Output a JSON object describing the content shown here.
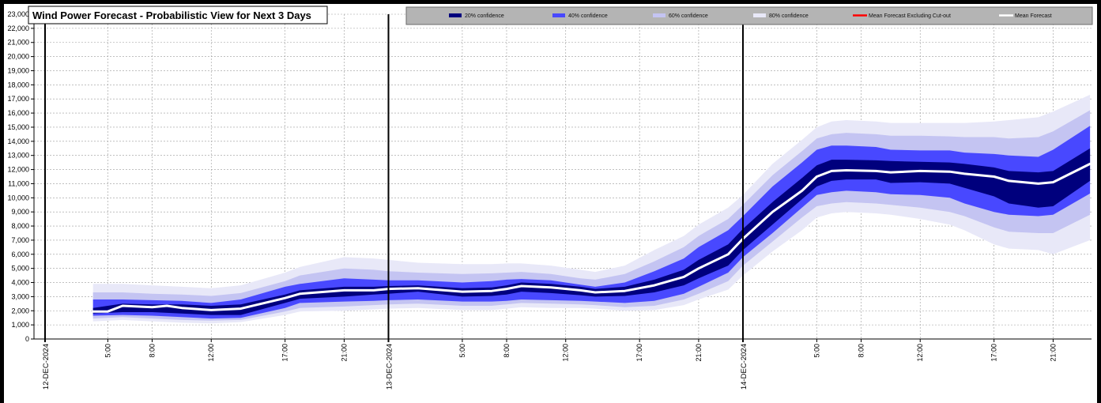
{
  "chart_data": {
    "type": "area",
    "title": "Wind Power Forecast - Probabilistic View for Next 3 Days",
    "ylim": [
      0,
      23000
    ],
    "y_ticks": [
      "0",
      "1,000",
      "2,000",
      "3,000",
      "4,000",
      "5,000",
      "6,000",
      "7,000",
      "8,000",
      "9,000",
      "10,000",
      "11,000",
      "12,000",
      "13,000",
      "14,000",
      "15,000",
      "16,000",
      "17,000",
      "18,000",
      "19,000",
      "20,000",
      "21,000",
      "22,000",
      "23,000"
    ],
    "x_range_hours": [
      0,
      71.6
    ],
    "dates": [
      {
        "label": "12-DEC-2024",
        "hour": 0
      },
      {
        "label": "13-DEC-2024",
        "hour": 24
      },
      {
        "label": "14-DEC-2024",
        "hour": 48
      }
    ],
    "time_ticks": [
      {
        "label": "5:00",
        "hour": 5
      },
      {
        "label": "8:00",
        "hour": 8
      },
      {
        "label": "12:00",
        "hour": 12
      },
      {
        "label": "17:00",
        "hour": 17
      },
      {
        "label": "21:00",
        "hour": 21
      },
      {
        "label": "5:00",
        "hour": 29
      },
      {
        "label": "8:00",
        "hour": 32
      },
      {
        "label": "12:00",
        "hour": 36
      },
      {
        "label": "17:00",
        "hour": 41
      },
      {
        "label": "21:00",
        "hour": 45
      },
      {
        "label": "5:00",
        "hour": 53
      },
      {
        "label": "8:00",
        "hour": 56
      },
      {
        "label": "12:00",
        "hour": 60
      },
      {
        "label": "17:00",
        "hour": 65
      },
      {
        "label": "21:00",
        "hour": 69
      }
    ],
    "legend": [
      {
        "label": "20% confidence",
        "color": "#00007d",
        "kind": "band"
      },
      {
        "label": "40% confidence",
        "color": "#4848ff",
        "kind": "band"
      },
      {
        "label": "60% confidence",
        "color": "#c4c4f2",
        "kind": "band"
      },
      {
        "label": "80% confidence",
        "color": "#e8e8f8",
        "kind": "band"
      },
      {
        "label": "Mean Forecast Excluding Cut-out",
        "color": "#ff0000",
        "kind": "line"
      },
      {
        "label": "Mean Forecast",
        "color": "#ffffff",
        "kind": "line"
      }
    ],
    "series": [
      {
        "name": "Mean Forecast",
        "x": [
          4,
          5,
          6,
          8,
          9,
          10,
          12,
          14,
          17,
          18,
          21,
          23,
          24,
          26,
          29,
          31,
          32,
          33,
          35,
          37,
          38,
          40,
          42,
          44,
          45,
          47,
          48,
          50,
          52,
          53,
          54,
          55,
          57,
          58,
          60,
          62,
          63,
          65,
          66,
          68,
          69,
          71.5
        ],
        "y": [
          1950,
          1950,
          2350,
          2250,
          2350,
          2200,
          2050,
          2150,
          2900,
          3200,
          3450,
          3450,
          3550,
          3600,
          3350,
          3400,
          3550,
          3750,
          3650,
          3450,
          3300,
          3400,
          3800,
          4400,
          5000,
          6000,
          7100,
          9000,
          10500,
          11500,
          11900,
          11950,
          11900,
          11800,
          11900,
          11850,
          11700,
          11500,
          11200,
          11000,
          11100,
          12400
        ]
      }
    ],
    "bands": [
      {
        "name": "20% confidence",
        "x": [
          4,
          6,
          8,
          10,
          12,
          14,
          17,
          18,
          21,
          23,
          24,
          26,
          29,
          31,
          32,
          33,
          35,
          37,
          38,
          40,
          42,
          44,
          45,
          47,
          48,
          50,
          52,
          53,
          54,
          55,
          57,
          58,
          60,
          62,
          63,
          65,
          66,
          68,
          69,
          71.5
        ],
        "upper": [
          2200,
          2500,
          2450,
          2450,
          2350,
          2450,
          3150,
          3450,
          3700,
          3700,
          3750,
          3800,
          3600,
          3650,
          3800,
          4000,
          3900,
          3700,
          3550,
          3700,
          4200,
          4900,
          5600,
          6700,
          7800,
          9700,
          11400,
          12300,
          12700,
          12700,
          12650,
          12600,
          12550,
          12500,
          12400,
          12150,
          11900,
          11800,
          11900,
          13500
        ],
        "lower": [
          1800,
          1900,
          1900,
          1800,
          1700,
          1700,
          2550,
          2850,
          3000,
          3150,
          3200,
          3350,
          3000,
          3050,
          3150,
          3350,
          3250,
          3100,
          3000,
          3050,
          3300,
          3800,
          4300,
          5200,
          6300,
          8100,
          9900,
          10800,
          11200,
          11300,
          11300,
          11050,
          11100,
          11000,
          10700,
          10100,
          9600,
          9300,
          9400,
          11200
        ]
      },
      {
        "name": "40% confidence",
        "x": [
          4,
          6,
          8,
          10,
          12,
          14,
          17,
          18,
          21,
          23,
          24,
          26,
          29,
          31,
          32,
          33,
          35,
          37,
          38,
          40,
          42,
          44,
          45,
          47,
          48,
          50,
          52,
          53,
          54,
          55,
          57,
          58,
          60,
          62,
          63,
          65,
          66,
          68,
          69,
          71.5
        ],
        "upper": [
          2800,
          2800,
          2750,
          2700,
          2550,
          2800,
          3700,
          3900,
          4300,
          4200,
          4150,
          4150,
          4000,
          4100,
          4200,
          4250,
          4150,
          3850,
          3700,
          4000,
          4800,
          5700,
          6500,
          7700,
          8700,
          10800,
          12500,
          13400,
          13700,
          13700,
          13600,
          13400,
          13350,
          13350,
          13200,
          13100,
          13000,
          12900,
          13400,
          15100
        ],
        "lower": [
          1650,
          1700,
          1650,
          1550,
          1450,
          1500,
          2200,
          2550,
          2650,
          2700,
          2750,
          2800,
          2650,
          2650,
          2700,
          2800,
          2750,
          2700,
          2650,
          2550,
          2700,
          3200,
          3700,
          4700,
          5800,
          7500,
          9300,
          10200,
          10400,
          10500,
          10400,
          10250,
          10200,
          10000,
          9600,
          9000,
          8800,
          8700,
          8800,
          10300
        ]
      },
      {
        "name": "60% confidence",
        "x": [
          4,
          6,
          8,
          10,
          12,
          14,
          17,
          18,
          21,
          23,
          24,
          26,
          29,
          31,
          32,
          33,
          35,
          37,
          38,
          40,
          42,
          44,
          45,
          47,
          48,
          50,
          52,
          53,
          54,
          55,
          57,
          58,
          60,
          62,
          63,
          65,
          66,
          68,
          69,
          71.5
        ],
        "upper": [
          3300,
          3300,
          3200,
          3150,
          3050,
          3250,
          4100,
          4500,
          5000,
          4900,
          4800,
          4700,
          4600,
          4650,
          4700,
          4750,
          4600,
          4300,
          4200,
          4600,
          5500,
          6500,
          7300,
          8500,
          9500,
          11600,
          13300,
          14200,
          14500,
          14600,
          14500,
          14400,
          14400,
          14350,
          14300,
          14300,
          14200,
          14300,
          14700,
          16200
        ],
        "lower": [
          1450,
          1550,
          1450,
          1350,
          1300,
          1350,
          1950,
          2200,
          2300,
          2400,
          2450,
          2500,
          2350,
          2350,
          2450,
          2550,
          2500,
          2450,
          2400,
          2250,
          2350,
          2800,
          3200,
          4100,
          5200,
          6900,
          8600,
          9400,
          9600,
          9700,
          9600,
          9500,
          9300,
          9000,
          8700,
          7900,
          7600,
          7500,
          7500,
          8800
        ]
      },
      {
        "name": "80% confidence",
        "x": [
          4,
          6,
          8,
          10,
          12,
          14,
          17,
          18,
          21,
          23,
          24,
          26,
          29,
          31,
          32,
          33,
          35,
          37,
          38,
          40,
          42,
          44,
          45,
          47,
          48,
          50,
          52,
          53,
          54,
          55,
          57,
          58,
          60,
          62,
          63,
          65,
          66,
          68,
          69,
          71.5
        ],
        "upper": [
          3900,
          3900,
          3800,
          3700,
          3600,
          3800,
          4700,
          5100,
          5800,
          5700,
          5600,
          5400,
          5300,
          5300,
          5350,
          5350,
          5200,
          4900,
          4750,
          5200,
          6300,
          7300,
          8100,
          9300,
          10200,
          12400,
          14100,
          15000,
          15400,
          15500,
          15400,
          15300,
          15300,
          15300,
          15300,
          15400,
          15500,
          15700,
          16100,
          17300
        ],
        "lower": [
          1250,
          1350,
          1250,
          1150,
          1100,
          1200,
          1700,
          1950,
          2000,
          2100,
          2150,
          2200,
          2050,
          2050,
          2150,
          2250,
          2200,
          2200,
          2150,
          2000,
          2050,
          2400,
          2800,
          3500,
          4500,
          6200,
          7700,
          8600,
          8900,
          9000,
          8900,
          8800,
          8500,
          8100,
          7700,
          6700,
          6400,
          6300,
          6000,
          7000
        ]
      }
    ]
  }
}
